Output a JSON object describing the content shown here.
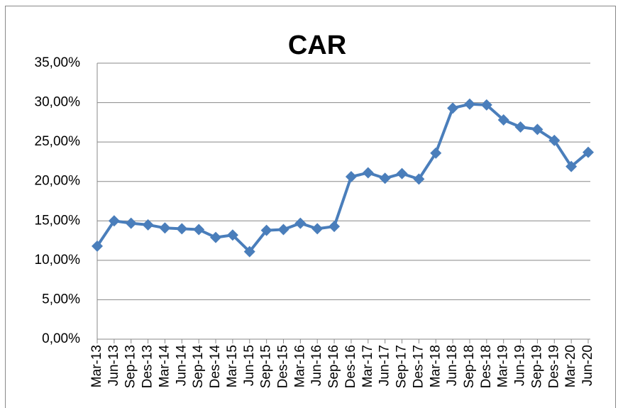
{
  "chart_data": {
    "type": "line",
    "title": "CAR",
    "categories": [
      "Mar-13",
      "Jun-13",
      "Sep-13",
      "Des-13",
      "Mar-14",
      "Jun-14",
      "Sep-14",
      "Des-14",
      "Mar-15",
      "Jun-15",
      "Sep-15",
      "Des-15",
      "Mar-16",
      "Jun-16",
      "Sep-16",
      "Des-16",
      "Mar-17",
      "Jun-17",
      "Sep-17",
      "Des-17",
      "Mar-18",
      "Jun-18",
      "Sep-18",
      "Des-18",
      "Mar-19",
      "Jun-19",
      "Sep-19",
      "Des-19",
      "Mar-20",
      "Jun-20"
    ],
    "values": [
      11.8,
      15.0,
      14.7,
      14.5,
      14.1,
      14.0,
      13.9,
      12.9,
      13.2,
      11.1,
      13.8,
      13.9,
      14.7,
      14.0,
      14.3,
      20.6,
      21.1,
      20.4,
      21.0,
      20.3,
      23.6,
      29.3,
      29.8,
      29.7,
      27.8,
      26.9,
      26.6,
      25.2,
      21.9,
      23.7
    ],
    "color": "#4a7ebb",
    "ylim": [
      0,
      35
    ],
    "yticks": [
      {
        "value": 0,
        "label": "0,00%"
      },
      {
        "value": 5,
        "label": "5,00%"
      },
      {
        "value": 10,
        "label": "10,00%"
      },
      {
        "value": 15,
        "label": "15,00%"
      },
      {
        "value": 20,
        "label": "20,00%"
      },
      {
        "value": 25,
        "label": "25,00%"
      },
      {
        "value": 30,
        "label": "30,00%"
      },
      {
        "value": 35,
        "label": "35,00%"
      }
    ],
    "grid": true
  }
}
